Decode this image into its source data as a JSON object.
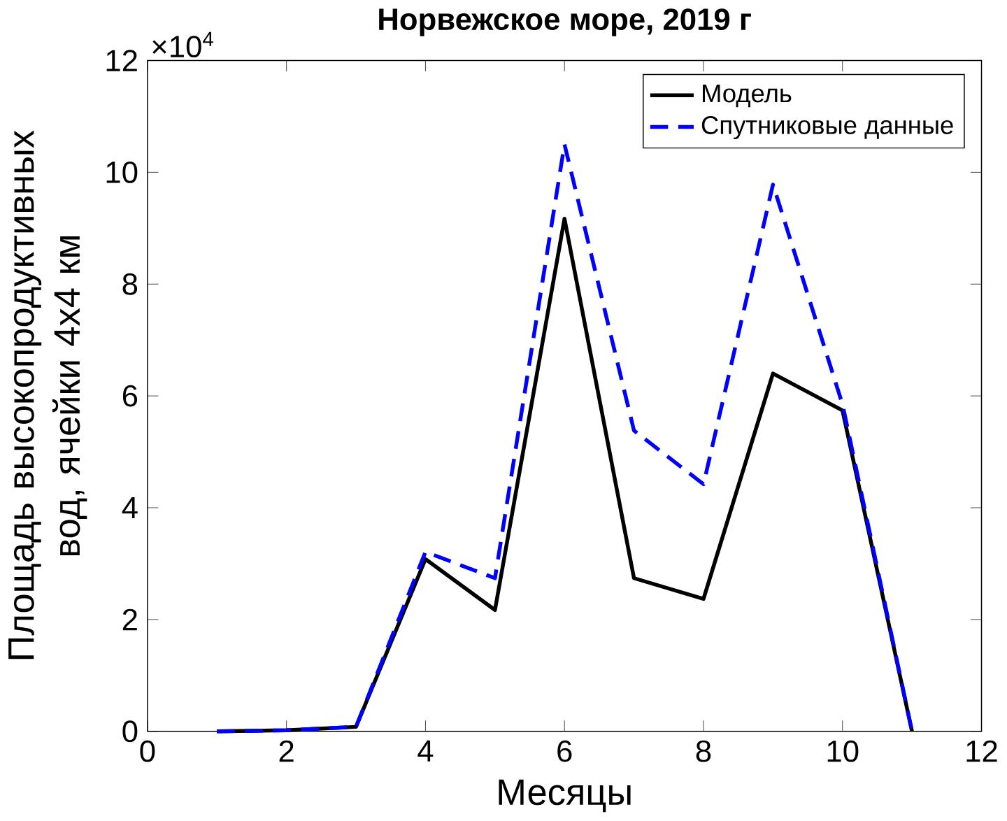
{
  "chart_data": {
    "type": "line",
    "title": "Норвежское море, 2019 г",
    "xlabel": "Месяцы",
    "ylabel": "Площадь высокопродуктивных вод, ячейки 4x4 км",
    "x": [
      1,
      2,
      3,
      4,
      5,
      6,
      7,
      8,
      9,
      10,
      11
    ],
    "series": [
      {
        "name": "Модель",
        "color": "#000000",
        "line_style": "solid",
        "values": [
          0,
          0.02,
          0.08,
          3.08,
          2.17,
          9.17,
          2.74,
          2.37,
          6.4,
          5.74,
          0
        ]
      },
      {
        "name": "Спутниковые данные",
        "color": "#0000ff",
        "line_style": "dashed",
        "values": [
          0,
          0.02,
          0.08,
          3.21,
          2.74,
          10.5,
          5.38,
          4.42,
          9.78,
          5.85,
          0
        ]
      }
    ],
    "xlim": [
      0,
      12
    ],
    "xticks": [
      0,
      2,
      4,
      6,
      8,
      10,
      12
    ],
    "ylim": [
      0,
      12
    ],
    "yticks": [
      0,
      2,
      4,
      6,
      8,
      10,
      12
    ],
    "annotations": [
      "×10$^{4}$"
    ],
    "legend": "top right",
    "grid": false,
    "marker": "none"
  }
}
